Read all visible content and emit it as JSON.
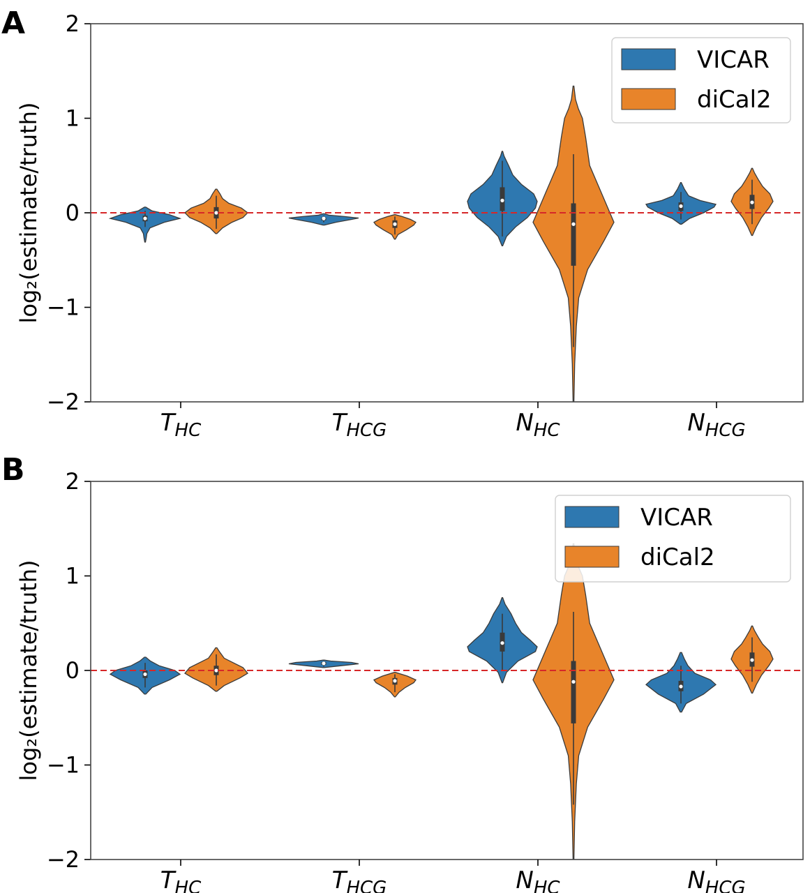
{
  "colors": {
    "vicar": "#2e78b0",
    "dical2": "#e8842a",
    "reference_line": "#d62728"
  },
  "chart_data": [
    {
      "type": "violin",
      "panel_label": "A",
      "ylabel": "log₂(estimate/truth)",
      "ylim": [
        -2,
        2
      ],
      "yticks": [
        2,
        1,
        0,
        -1,
        -2
      ],
      "ytick_labels": [
        "2",
        "1",
        "0",
        "−1",
        "−2"
      ],
      "categories": [
        {
          "base": "T",
          "sub": "HC"
        },
        {
          "base": "T",
          "sub": "HCG"
        },
        {
          "base": "N",
          "sub": "HC"
        },
        {
          "base": "N",
          "sub": "HCG"
        }
      ],
      "reference_y": 0,
      "legend": {
        "placement": "top-right",
        "entries": [
          "VICAR",
          "diCal2"
        ]
      },
      "series": [
        {
          "name": "VICAR",
          "violins": [
            {
              "min": -0.31,
              "max": 0.06,
              "q1": -0.09,
              "median": -0.06,
              "q3": -0.03,
              "wlo": -0.15,
              "whi": 0.02,
              "profile": [
                [
                  -0.31,
                  0.01
                ],
                [
                  -0.27,
                  0.03
                ],
                [
                  -0.22,
                  0.05
                ],
                [
                  -0.16,
                  0.14
                ],
                [
                  -0.1,
                  0.55
                ],
                [
                  -0.06,
                  1.0
                ],
                [
                  -0.02,
                  0.7
                ],
                [
                  0.02,
                  0.2
                ],
                [
                  0.06,
                  0.02
                ]
              ]
            },
            {
              "min": -0.13,
              "max": -0.01,
              "q1": -0.08,
              "median": -0.06,
              "q3": -0.05,
              "wlo": -0.1,
              "whi": -0.03,
              "profile": [
                [
                  -0.13,
                  0.02
                ],
                [
                  -0.1,
                  0.35
                ],
                [
                  -0.07,
                  0.8
                ],
                [
                  -0.055,
                  1.0
                ],
                [
                  -0.04,
                  0.6
                ],
                [
                  -0.025,
                  0.15
                ],
                [
                  -0.01,
                  0.02
                ]
              ]
            },
            {
              "min": -0.35,
              "max": 0.65,
              "q1": 0.02,
              "median": 0.13,
              "q3": 0.27,
              "wlo": -0.25,
              "whi": 0.55,
              "profile": [
                [
                  -0.35,
                  0.01
                ],
                [
                  -0.25,
                  0.12
                ],
                [
                  -0.15,
                  0.38
                ],
                [
                  -0.05,
                  0.72
                ],
                [
                  0.05,
                  0.95
                ],
                [
                  0.12,
                  1.0
                ],
                [
                  0.2,
                  0.9
                ],
                [
                  0.3,
                  0.55
                ],
                [
                  0.4,
                  0.3
                ],
                [
                  0.5,
                  0.18
                ],
                [
                  0.6,
                  0.05
                ],
                [
                  0.65,
                  0.01
                ]
              ]
            },
            {
              "min": -0.12,
              "max": 0.32,
              "q1": 0.02,
              "median": 0.07,
              "q3": 0.11,
              "wlo": -0.07,
              "whi": 0.22,
              "profile": [
                [
                  -0.12,
                  0.02
                ],
                [
                  -0.06,
                  0.25
                ],
                [
                  0.0,
                  0.65
                ],
                [
                  0.06,
                  0.95
                ],
                [
                  0.09,
                  1.0
                ],
                [
                  0.13,
                  0.55
                ],
                [
                  0.18,
                  0.22
                ],
                [
                  0.25,
                  0.1
                ],
                [
                  0.32,
                  0.01
                ]
              ]
            }
          ]
        },
        {
          "name": "diCal2",
          "violins": [
            {
              "min": -0.22,
              "max": 0.25,
              "q1": -0.06,
              "median": 0.0,
              "q3": 0.06,
              "wlo": -0.17,
              "whi": 0.18,
              "profile": [
                [
                  -0.22,
                  0.02
                ],
                [
                  -0.16,
                  0.2
                ],
                [
                  -0.1,
                  0.5
                ],
                [
                  -0.05,
                  0.85
                ],
                [
                  0.0,
                  1.0
                ],
                [
                  0.05,
                  0.8
                ],
                [
                  0.1,
                  0.4
                ],
                [
                  0.15,
                  0.2
                ],
                [
                  0.2,
                  0.12
                ],
                [
                  0.25,
                  0.02
                ]
              ]
            },
            {
              "min": -0.28,
              "max": -0.02,
              "q1": -0.16,
              "median": -0.12,
              "q3": -0.08,
              "wlo": -0.23,
              "whi": -0.04,
              "profile": [
                [
                  -0.28,
                  0.02
                ],
                [
                  -0.23,
                  0.15
                ],
                [
                  -0.18,
                  0.55
                ],
                [
                  -0.13,
                  0.9
                ],
                [
                  -0.1,
                  1.0
                ],
                [
                  -0.07,
                  0.75
                ],
                [
                  -0.04,
                  0.35
                ],
                [
                  -0.02,
                  0.02
                ]
              ]
            },
            {
              "min": -2.0,
              "max": 1.34,
              "q1": -0.56,
              "median": -0.12,
              "q3": 0.1,
              "wlo": -1.42,
              "whi": 0.62,
              "profile": [
                [
                  -2.0,
                  0.01
                ],
                [
                  -1.6,
                  0.03
                ],
                [
                  -1.2,
                  0.07
                ],
                [
                  -0.9,
                  0.13
                ],
                [
                  -0.6,
                  0.35
                ],
                [
                  -0.3,
                  0.75
                ],
                [
                  -0.1,
                  1.0
                ],
                [
                  0.2,
                  0.7
                ],
                [
                  0.5,
                  0.4
                ],
                [
                  0.8,
                  0.3
                ],
                [
                  1.0,
                  0.22
                ],
                [
                  1.1,
                  0.12
                ],
                [
                  1.2,
                  0.05
                ],
                [
                  1.34,
                  0.01
                ]
              ]
            },
            {
              "min": -0.24,
              "max": 0.47,
              "q1": 0.04,
              "median": 0.11,
              "q3": 0.19,
              "wlo": -0.12,
              "whi": 0.35,
              "profile": [
                [
                  -0.24,
                  0.02
                ],
                [
                  -0.15,
                  0.2
                ],
                [
                  -0.05,
                  0.45
                ],
                [
                  0.05,
                  0.8
                ],
                [
                  0.12,
                  1.0
                ],
                [
                  0.2,
                  0.85
                ],
                [
                  0.28,
                  0.5
                ],
                [
                  0.35,
                  0.3
                ],
                [
                  0.42,
                  0.12
                ],
                [
                  0.47,
                  0.02
                ]
              ]
            }
          ]
        }
      ]
    },
    {
      "type": "violin",
      "panel_label": "B",
      "ylabel": "log₂(estimate/truth)",
      "ylim": [
        -2,
        2
      ],
      "yticks": [
        2,
        1,
        0,
        -1,
        -2
      ],
      "ytick_labels": [
        "2",
        "1",
        "0",
        "−1",
        "−2"
      ],
      "categories": [
        {
          "base": "T",
          "sub": "HC"
        },
        {
          "base": "T",
          "sub": "HCG"
        },
        {
          "base": "N",
          "sub": "HC"
        },
        {
          "base": "N",
          "sub": "HCG"
        }
      ],
      "reference_y": 0,
      "legend": {
        "placement": "top-right",
        "entries": [
          "VICAR",
          "diCal2"
        ]
      },
      "series": [
        {
          "name": "VICAR",
          "violins": [
            {
              "min": -0.25,
              "max": 0.14,
              "q1": -0.08,
              "median": -0.04,
              "q3": 0.0,
              "wlo": -0.18,
              "whi": 0.08,
              "profile": [
                [
                  -0.25,
                  0.02
                ],
                [
                  -0.18,
                  0.2
                ],
                [
                  -0.1,
                  0.7
                ],
                [
                  -0.04,
                  1.0
                ],
                [
                  0.0,
                  0.85
                ],
                [
                  0.05,
                  0.4
                ],
                [
                  0.1,
                  0.15
                ],
                [
                  0.14,
                  0.02
                ]
              ]
            },
            {
              "min": 0.03,
              "max": 0.11,
              "q1": 0.06,
              "median": 0.075,
              "q3": 0.09,
              "wlo": 0.04,
              "whi": 0.1,
              "profile": [
                [
                  0.03,
                  0.02
                ],
                [
                  0.05,
                  0.5
                ],
                [
                  0.07,
                  1.0
                ],
                [
                  0.085,
                  0.8
                ],
                [
                  0.1,
                  0.2
                ],
                [
                  0.11,
                  0.02
                ]
              ]
            },
            {
              "min": -0.13,
              "max": 0.77,
              "q1": 0.2,
              "median": 0.29,
              "q3": 0.4,
              "wlo": 0.0,
              "whi": 0.6,
              "profile": [
                [
                  -0.13,
                  0.01
                ],
                [
                  -0.02,
                  0.12
                ],
                [
                  0.1,
                  0.45
                ],
                [
                  0.2,
                  0.95
                ],
                [
                  0.25,
                  1.0
                ],
                [
                  0.32,
                  0.8
                ],
                [
                  0.4,
                  0.55
                ],
                [
                  0.5,
                  0.38
                ],
                [
                  0.6,
                  0.25
                ],
                [
                  0.7,
                  0.08
                ],
                [
                  0.77,
                  0.01
                ]
              ]
            },
            {
              "min": -0.44,
              "max": 0.19,
              "q1": -0.22,
              "median": -0.17,
              "q3": -0.11,
              "wlo": -0.35,
              "whi": 0.05,
              "profile": [
                [
                  -0.44,
                  0.02
                ],
                [
                  -0.35,
                  0.15
                ],
                [
                  -0.25,
                  0.65
                ],
                [
                  -0.15,
                  1.0
                ],
                [
                  -0.1,
                  0.85
                ],
                [
                  -0.03,
                  0.4
                ],
                [
                  0.05,
                  0.2
                ],
                [
                  0.12,
                  0.1
                ],
                [
                  0.19,
                  0.02
                ]
              ]
            }
          ]
        },
        {
          "name": "diCal2",
          "violins": [
            {
              "min": -0.22,
              "max": 0.24,
              "q1": -0.05,
              "median": 0.0,
              "q3": 0.05,
              "wlo": -0.16,
              "whi": 0.17,
              "profile": [
                [
                  -0.22,
                  0.02
                ],
                [
                  -0.16,
                  0.25
                ],
                [
                  -0.08,
                  0.75
                ],
                [
                  -0.03,
                  1.0
                ],
                [
                  0.03,
                  0.85
                ],
                [
                  0.08,
                  0.55
                ],
                [
                  0.13,
                  0.25
                ],
                [
                  0.19,
                  0.12
                ],
                [
                  0.24,
                  0.02
                ]
              ]
            },
            {
              "min": -0.28,
              "max": -0.02,
              "q1": -0.15,
              "median": -0.11,
              "q3": -0.08,
              "wlo": -0.23,
              "whi": -0.04,
              "profile": [
                [
                  -0.28,
                  0.02
                ],
                [
                  -0.23,
                  0.2
                ],
                [
                  -0.18,
                  0.5
                ],
                [
                  -0.13,
                  0.9
                ],
                [
                  -0.1,
                  1.0
                ],
                [
                  -0.06,
                  0.6
                ],
                [
                  -0.02,
                  0.02
                ]
              ]
            },
            {
              "min": -2.0,
              "max": 1.34,
              "q1": -0.56,
              "median": -0.12,
              "q3": 0.1,
              "wlo": -1.42,
              "whi": 0.62,
              "profile": [
                [
                  -2.0,
                  0.01
                ],
                [
                  -1.6,
                  0.03
                ],
                [
                  -1.2,
                  0.07
                ],
                [
                  -0.9,
                  0.13
                ],
                [
                  -0.6,
                  0.35
                ],
                [
                  -0.3,
                  0.75
                ],
                [
                  -0.1,
                  1.0
                ],
                [
                  0.2,
                  0.7
                ],
                [
                  0.5,
                  0.4
                ],
                [
                  0.8,
                  0.3
                ],
                [
                  1.0,
                  0.22
                ],
                [
                  1.1,
                  0.12
                ],
                [
                  1.2,
                  0.05
                ],
                [
                  1.34,
                  0.01
                ]
              ]
            },
            {
              "min": -0.24,
              "max": 0.47,
              "q1": 0.04,
              "median": 0.11,
              "q3": 0.19,
              "wlo": -0.12,
              "whi": 0.35,
              "profile": [
                [
                  -0.24,
                  0.02
                ],
                [
                  -0.15,
                  0.2
                ],
                [
                  -0.05,
                  0.45
                ],
                [
                  0.05,
                  0.8
                ],
                [
                  0.12,
                  1.0
                ],
                [
                  0.2,
                  0.85
                ],
                [
                  0.28,
                  0.5
                ],
                [
                  0.35,
                  0.3
                ],
                [
                  0.42,
                  0.12
                ],
                [
                  0.47,
                  0.02
                ]
              ]
            }
          ]
        }
      ]
    }
  ]
}
